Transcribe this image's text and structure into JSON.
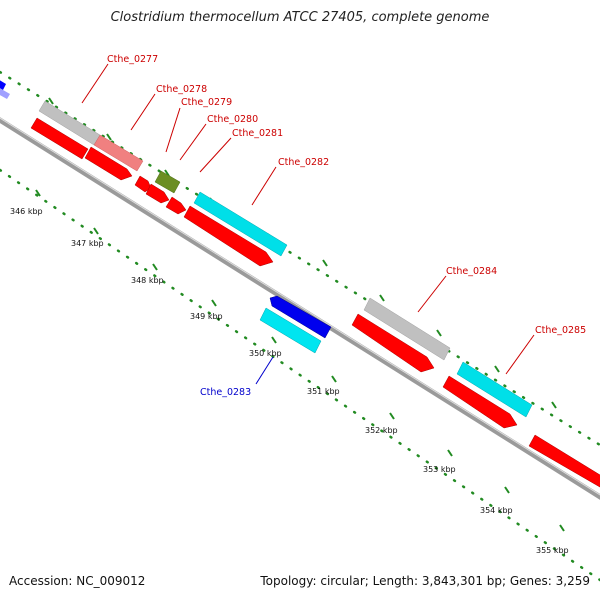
{
  "title": "Clostridium thermocellum ATCC 27405, complete genome",
  "accession_text": "Accession: NC_009012",
  "topology_text": "Topology: circular; Length: 3,843,301 bp; Genes: 3,259",
  "colors": {
    "cds_forward": "#ff0000",
    "cds_reverse": "#0000ff",
    "cog_gray": "#bdbdbd",
    "cog_cyan": "#00e5f0",
    "cog_pink": "#f08080",
    "cog_olive": "#6b8e23",
    "backbone": "#888888",
    "tick": "#228b22",
    "label_forward": "#cc0000",
    "label_reverse": "#0000cc"
  },
  "kbp_labels": [
    "346 kbp",
    "347 kbp",
    "348 kbp",
    "349 kbp",
    "350 kbp",
    "351 kbp",
    "352 kbp",
    "353 kbp",
    "354 kbp",
    "355 kbp"
  ],
  "gene_labels": [
    {
      "text": "Cthe_0277",
      "strand": "forward"
    },
    {
      "text": "Cthe_0278",
      "strand": "forward"
    },
    {
      "text": "Cthe_0279",
      "strand": "forward"
    },
    {
      "text": "Cthe_0280",
      "strand": "forward"
    },
    {
      "text": "Cthe_0281",
      "strand": "forward"
    },
    {
      "text": "Cthe_0282",
      "strand": "forward"
    },
    {
      "text": "Cthe_0283",
      "strand": "reverse"
    },
    {
      "text": "Cthe_0284",
      "strand": "forward"
    },
    {
      "text": "Cthe_0285",
      "strand": "forward"
    }
  ]
}
